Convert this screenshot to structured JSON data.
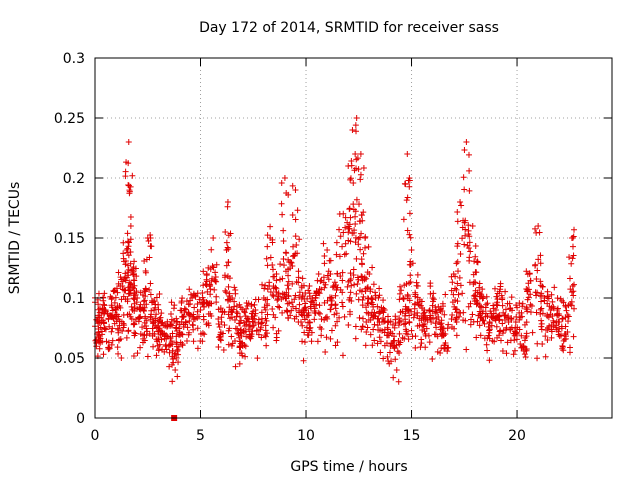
{
  "chart_data": {
    "type": "scatter",
    "title": "Day 172 of 2014, SRMTID for receiver sass",
    "xlabel": "GPS time / hours",
    "ylabel": "SRMTID / TECUs",
    "xlim": [
      0,
      24.5
    ],
    "ylim": [
      0,
      0.3
    ],
    "xticks": [
      0,
      5,
      10,
      15,
      20
    ],
    "xtick_labels": [
      "0",
      "5",
      "10",
      "15",
      "20"
    ],
    "yticks": [
      0,
      0.05,
      0.1,
      0.15,
      0.2,
      0.25,
      0.3
    ],
    "ytick_labels": [
      "0",
      "0.05",
      "0.1",
      "0.15",
      "0.2",
      "0.25",
      "0.3"
    ],
    "grid": true,
    "series": [
      {
        "name": "SRMTID",
        "marker": "plus",
        "color": "#e00000",
        "summary": "dense cloud of points between ~0.02 and ~0.25 TECU over 0–22.7 h",
        "x": [
          0.1,
          0.3,
          0.5,
          0.8,
          1.0,
          1.2,
          1.5,
          1.6,
          1.7,
          1.8,
          2.0,
          2.3,
          2.5,
          2.8,
          3.0,
          3.2,
          3.5,
          3.8,
          4.0,
          4.3,
          4.6,
          5.0,
          5.3,
          5.6,
          6.0,
          6.3,
          6.5,
          6.8,
          7.0,
          7.3,
          7.6,
          8.0,
          8.3,
          8.6,
          9.0,
          9.2,
          9.5,
          9.8,
          10.0,
          10.3,
          10.6,
          11.0,
          11.3,
          11.6,
          12.0,
          12.2,
          12.4,
          12.6,
          12.8,
          13.0,
          13.3,
          13.6,
          14.0,
          14.3,
          14.6,
          14.8,
          15.0,
          15.3,
          15.6,
          16.0,
          16.3,
          16.6,
          17.0,
          17.3,
          17.6,
          17.9,
          18.1,
          18.4,
          18.7,
          19.0,
          19.3,
          19.6,
          20.0,
          20.3,
          20.6,
          21.0,
          21.3,
          21.6,
          22.0,
          22.3,
          22.6
        ],
        "y": [
          0.07,
          0.08,
          0.09,
          0.1,
          0.09,
          0.11,
          0.14,
          0.23,
          0.16,
          0.12,
          0.1,
          0.09,
          0.15,
          0.09,
          0.08,
          0.07,
          0.06,
          0.04,
          0.07,
          0.08,
          0.1,
          0.09,
          0.12,
          0.15,
          0.08,
          0.18,
          0.1,
          0.07,
          0.06,
          0.08,
          0.09,
          0.1,
          0.15,
          0.12,
          0.2,
          0.13,
          0.19,
          0.11,
          0.09,
          0.1,
          0.12,
          0.14,
          0.11,
          0.17,
          0.21,
          0.24,
          0.25,
          0.22,
          0.15,
          0.12,
          0.1,
          0.08,
          0.06,
          0.04,
          0.1,
          0.22,
          0.14,
          0.11,
          0.09,
          0.1,
          0.08,
          0.07,
          0.12,
          0.18,
          0.23,
          0.16,
          0.13,
          0.1,
          0.08,
          0.09,
          0.1,
          0.08,
          0.07,
          0.06,
          0.12,
          0.16,
          0.1,
          0.09,
          0.08,
          0.07,
          0.15
        ]
      }
    ],
    "outlier": {
      "x": 3.75,
      "y": 0.0,
      "marker": "square",
      "color": "#e00000"
    }
  }
}
